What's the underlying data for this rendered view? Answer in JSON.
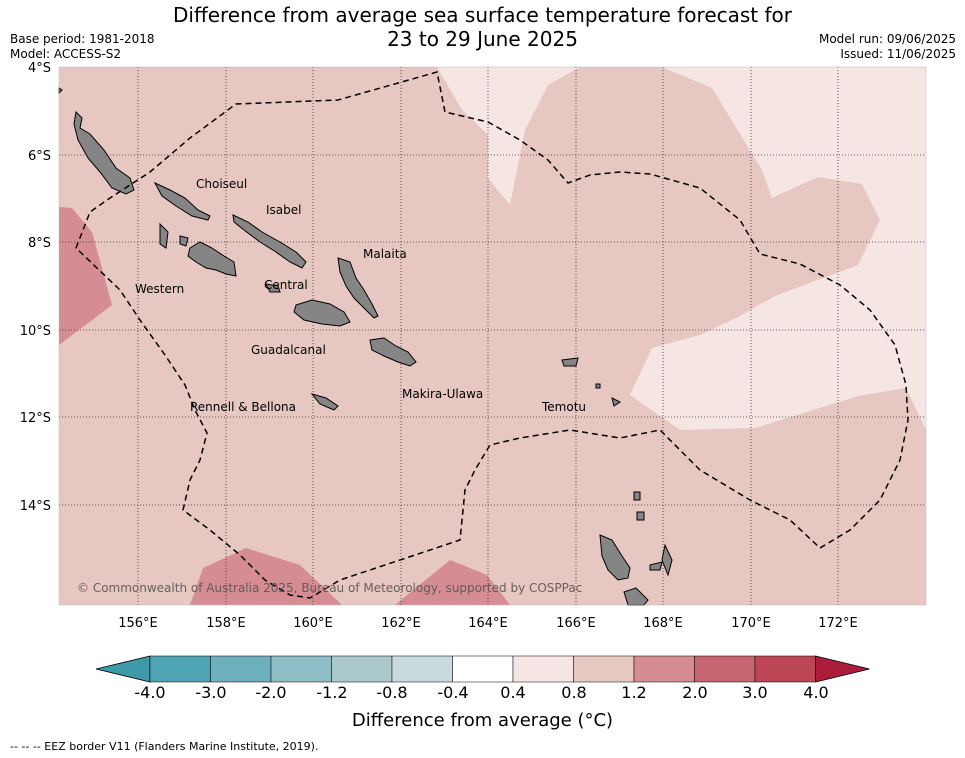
{
  "title_line1": "Difference from average sea surface temperature forecast for",
  "title_line2": "23 to 29 June 2025",
  "meta_left": {
    "base_period": "Base period: 1981-2018",
    "model": "Model: ACCESS-S2"
  },
  "meta_right": {
    "model_run": "Model run: 09/06/2025",
    "issued": "Issued: 11/06/2025"
  },
  "lat_ticks": [
    "4°S",
    "6°S",
    "8°S",
    "10°S",
    "12°S",
    "14°S"
  ],
  "lon_ticks": [
    "156°E",
    "158°E",
    "160°E",
    "162°E",
    "164°E",
    "166°E",
    "168°E",
    "170°E",
    "172°E"
  ],
  "places": [
    "Choiseul",
    "Isabel",
    "Malaita",
    "Western",
    "Central",
    "Guadalcanal",
    "Makira-Ulawa",
    "Rennell & Bellona",
    "Temotu"
  ],
  "copyright": "© Commonwealth of Australia 2025, Bureau of Meteorology, supported by COSPPac",
  "colorbar": {
    "ticks": [
      "-4.0",
      "-3.0",
      "-2.0",
      "-1.2",
      "-0.8",
      "-0.4",
      "0.4",
      "0.8",
      "1.2",
      "2.0",
      "3.0",
      "4.0"
    ],
    "colors": [
      "#3e9aa8",
      "#4ea4b2",
      "#6eafbd",
      "#8fbdc6",
      "#abc9cd",
      "#c8dadd",
      "#ffffff",
      "#f5e6e4",
      "#e7c7c2",
      "#d58d93",
      "#c76570",
      "#bc4653",
      "#ab1d3a"
    ],
    "label": "Difference from average ($^\\circ$C)",
    "label_display": "Difference from average (°C)"
  },
  "footnote": "--  --  -- EEZ border V11 (Flanders Marine Institute, 2019).",
  "colors": {
    "land": "#858585",
    "base_anomaly": "#e7c7c2",
    "light_anomaly": "#f5e6e4",
    "warm_anomaly": "#d58d93",
    "eez_border": "#000000"
  }
}
